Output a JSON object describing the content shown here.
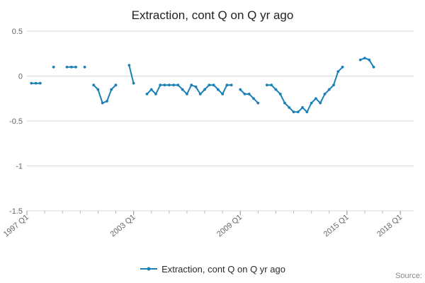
{
  "page": {
    "source_label": "Source:"
  },
  "chart_data": {
    "type": "line",
    "title": "Extraction, cont Q on Q yr ago",
    "xlabel": "",
    "ylabel": "",
    "grid": true,
    "legend_position": "bottom",
    "line_color": "#1b80b6",
    "grid_color": "#d9d9d9",
    "tick_label_color": "#666666",
    "ylim": [
      -1.5,
      0.5
    ],
    "y_ticks": [
      "0.5",
      "0",
      "-0.5",
      "-1",
      "-1.5"
    ],
    "y_tick_values": [
      0.5,
      0,
      -0.5,
      -1,
      -1.5
    ],
    "x_ticks": [
      "1997 Q1",
      "2003 Q1",
      "2009 Q1",
      "2015 Q1",
      "2018 Q1"
    ],
    "x_domain": [
      "1997 Q1",
      "2018 Q4"
    ],
    "series": [
      {
        "name": "Extraction, cont Q on Q yr ago",
        "color": "#1b80b6",
        "segments": [
          [
            [
              "1997 Q2",
              -0.08
            ],
            [
              "1997 Q3",
              -0.08
            ],
            [
              "1997 Q4",
              -0.08
            ]
          ],
          [
            [
              "1998 Q3",
              0.1
            ]
          ],
          [
            [
              "1999 Q2",
              0.1
            ],
            [
              "1999 Q3",
              0.1
            ],
            [
              "1999 Q4",
              0.1
            ]
          ],
          [
            [
              "2000 Q2",
              0.1
            ]
          ],
          [
            [
              "2000 Q4",
              -0.1
            ],
            [
              "2001 Q1",
              -0.15
            ],
            [
              "2001 Q2",
              -0.3
            ],
            [
              "2001 Q3",
              -0.28
            ],
            [
              "2001 Q4",
              -0.15
            ],
            [
              "2002 Q1",
              -0.1
            ]
          ],
          [
            [
              "2002 Q4",
              0.12
            ],
            [
              "2003 Q1",
              -0.08
            ]
          ],
          [
            [
              "2003 Q4",
              -0.2
            ],
            [
              "2004 Q1",
              -0.15
            ],
            [
              "2004 Q2",
              -0.2
            ],
            [
              "2004 Q3",
              -0.1
            ],
            [
              "2004 Q4",
              -0.1
            ],
            [
              "2005 Q1",
              -0.1
            ],
            [
              "2005 Q2",
              -0.1
            ],
            [
              "2005 Q3",
              -0.1
            ],
            [
              "2005 Q4",
              -0.15
            ],
            [
              "2006 Q1",
              -0.2
            ],
            [
              "2006 Q2",
              -0.1
            ],
            [
              "2006 Q3",
              -0.12
            ],
            [
              "2006 Q4",
              -0.2
            ],
            [
              "2007 Q1",
              -0.15
            ],
            [
              "2007 Q2",
              -0.1
            ],
            [
              "2007 Q3",
              -0.1
            ],
            [
              "2007 Q4",
              -0.15
            ],
            [
              "2008 Q1",
              -0.2
            ],
            [
              "2008 Q2",
              -0.1
            ],
            [
              "2008 Q3",
              -0.1
            ]
          ],
          [
            [
              "2009 Q1",
              -0.15
            ],
            [
              "2009 Q2",
              -0.2
            ],
            [
              "2009 Q3",
              -0.2
            ],
            [
              "2009 Q4",
              -0.25
            ],
            [
              "2010 Q1",
              -0.3
            ]
          ],
          [
            [
              "2010 Q3",
              -0.1
            ],
            [
              "2010 Q4",
              -0.1
            ],
            [
              "2011 Q1",
              -0.15
            ],
            [
              "2011 Q2",
              -0.2
            ],
            [
              "2011 Q3",
              -0.3
            ],
            [
              "2011 Q4",
              -0.35
            ],
            [
              "2012 Q1",
              -0.4
            ],
            [
              "2012 Q2",
              -0.4
            ],
            [
              "2012 Q3",
              -0.35
            ],
            [
              "2012 Q4",
              -0.4
            ],
            [
              "2013 Q1",
              -0.3
            ],
            [
              "2013 Q2",
              -0.25
            ],
            [
              "2013 Q3",
              -0.3
            ],
            [
              "2013 Q4",
              -0.2
            ],
            [
              "2014 Q1",
              -0.15
            ],
            [
              "2014 Q2",
              -0.1
            ],
            [
              "2014 Q3",
              0.05
            ],
            [
              "2014 Q4",
              0.1
            ]
          ],
          [
            [
              "2015 Q4",
              0.18
            ],
            [
              "2016 Q1",
              0.2
            ],
            [
              "2016 Q2",
              0.18
            ],
            [
              "2016 Q3",
              0.1
            ]
          ]
        ]
      }
    ]
  }
}
